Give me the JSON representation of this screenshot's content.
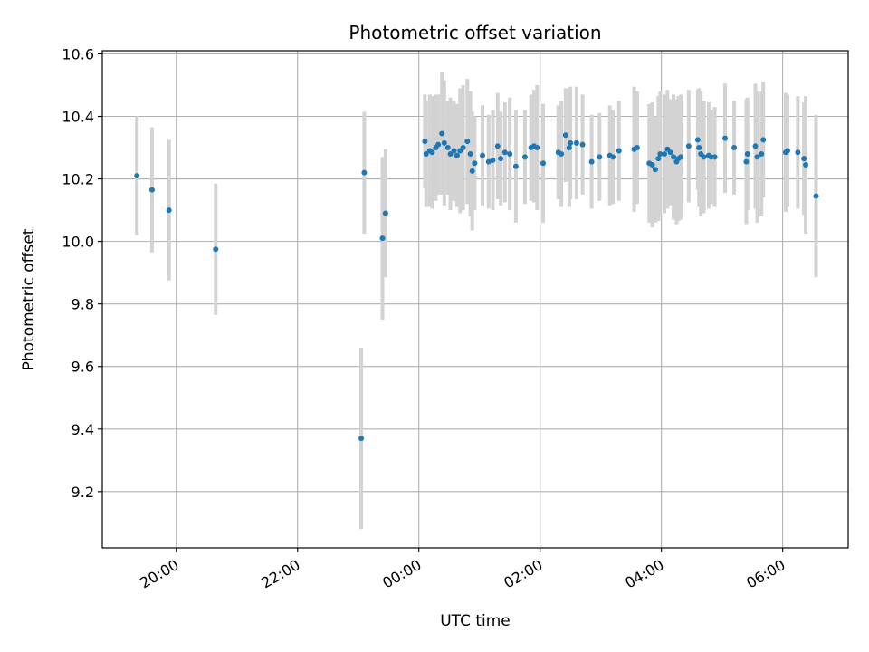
{
  "chart_data": {
    "type": "scatter",
    "title": "Photometric offset variation",
    "xlabel": "UTC time",
    "ylabel": "Photometric offset",
    "x_unit": "hours",
    "x_tick_values": [
      20,
      22,
      24,
      26,
      28,
      30
    ],
    "x_tick_labels": [
      "20:00",
      "22:00",
      "00:00",
      "02:00",
      "04:00",
      "06:00"
    ],
    "xlim": [
      18.78,
      31.08
    ],
    "y_ticks": [
      9.2,
      9.4,
      9.6,
      9.8,
      10.0,
      10.2,
      10.4,
      10.6
    ],
    "y_tick_labels": [
      "9.2",
      "9.4",
      "9.6",
      "9.8",
      "10.0",
      "10.2",
      "10.4",
      "10.6"
    ],
    "ylim": [
      9.02,
      10.61
    ],
    "grid": true,
    "colors": {
      "points": "#1f77b4",
      "error_bars": "#d3d3d3",
      "grid": "#b0b0b0"
    },
    "series": [
      {
        "x": [
          19.35,
          19.6,
          19.88,
          20.65,
          23.05,
          23.1,
          23.4,
          23.45,
          24.1,
          24.12,
          24.18,
          24.22,
          24.28,
          24.32,
          24.38,
          24.42,
          24.48,
          24.52,
          24.58,
          24.63,
          24.68,
          24.73,
          24.8,
          24.85,
          24.88,
          24.92,
          25.05,
          25.15,
          25.22,
          25.3,
          25.35,
          25.42,
          25.5,
          25.6,
          25.75,
          25.85,
          25.9,
          25.95,
          26.05,
          26.3,
          26.35,
          26.42,
          26.48,
          26.5,
          26.6,
          26.7,
          26.85,
          26.98,
          27.15,
          27.2,
          27.3,
          27.55,
          27.6,
          27.8,
          27.85,
          27.9,
          27.95,
          27.98,
          28.05,
          28.1,
          28.15,
          28.2,
          28.25,
          28.28,
          28.32,
          28.45,
          28.6,
          28.62,
          28.65,
          28.7,
          28.78,
          28.82,
          28.88,
          29.05,
          29.2,
          29.4,
          29.42,
          29.55,
          29.58,
          29.65,
          29.68,
          30.05,
          30.08,
          30.25,
          30.35,
          30.38,
          30.55
        ],
        "y": [
          10.21,
          10.165,
          10.1,
          9.975,
          9.37,
          10.22,
          10.01,
          10.09,
          10.32,
          10.28,
          10.29,
          10.285,
          10.3,
          10.31,
          10.345,
          10.315,
          10.3,
          10.28,
          10.29,
          10.275,
          10.29,
          10.3,
          10.32,
          10.28,
          10.225,
          10.25,
          10.275,
          10.255,
          10.26,
          10.305,
          10.265,
          10.285,
          10.28,
          10.24,
          10.27,
          10.3,
          10.305,
          10.3,
          10.25,
          10.285,
          10.28,
          10.34,
          10.3,
          10.315,
          10.315,
          10.31,
          10.255,
          10.27,
          10.275,
          10.27,
          10.29,
          10.295,
          10.3,
          10.25,
          10.245,
          10.23,
          10.265,
          10.28,
          10.28,
          10.295,
          10.285,
          10.27,
          10.255,
          10.265,
          10.27,
          10.305,
          10.325,
          10.3,
          10.28,
          10.27,
          10.275,
          10.27,
          10.27,
          10.33,
          10.3,
          10.255,
          10.28,
          10.305,
          10.27,
          10.28,
          10.325,
          10.285,
          10.29,
          10.285,
          10.265,
          10.245,
          10.145
        ],
        "yerr": [
          0.19,
          0.2,
          0.225,
          0.21,
          0.29,
          0.195,
          0.26,
          0.205,
          0.15,
          0.17,
          0.18,
          0.18,
          0.17,
          0.16,
          0.195,
          0.2,
          0.15,
          0.18,
          0.16,
          0.165,
          0.2,
          0.2,
          0.2,
          0.2,
          0.19,
          0.15,
          0.16,
          0.15,
          0.16,
          0.17,
          0.15,
          0.16,
          0.18,
          0.18,
          0.15,
          0.17,
          0.18,
          0.2,
          0.19,
          0.15,
          0.17,
          0.15,
          0.19,
          0.18,
          0.18,
          0.16,
          0.15,
          0.14,
          0.16,
          0.15,
          0.16,
          0.2,
          0.18,
          0.19,
          0.2,
          0.17,
          0.2,
          0.2,
          0.19,
          0.19,
          0.17,
          0.2,
          0.2,
          0.2,
          0.2,
          0.18,
          0.16,
          0.19,
          0.2,
          0.18,
          0.17,
          0.15,
          0.16,
          0.175,
          0.15,
          0.2,
          0.18,
          0.2,
          0.21,
          0.2,
          0.185,
          0.19,
          0.18,
          0.18,
          0.18,
          0.22,
          0.26
        ]
      }
    ]
  }
}
